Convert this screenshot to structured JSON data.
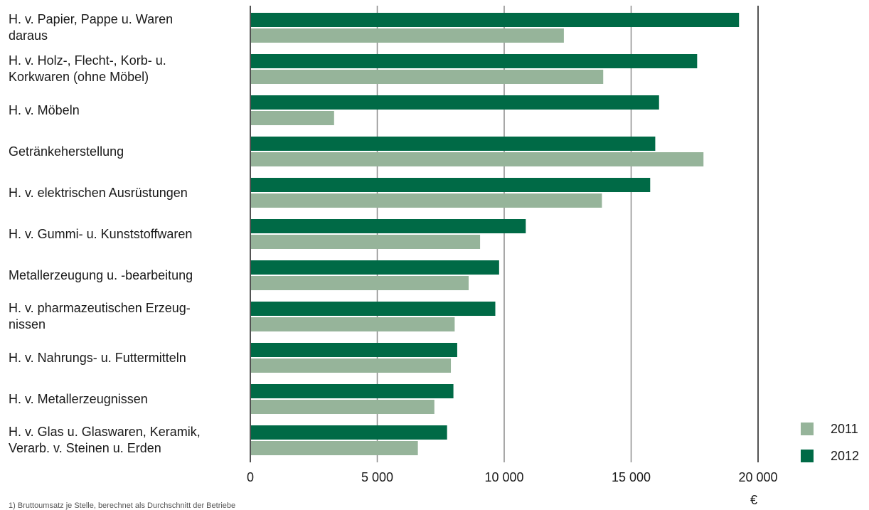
{
  "colors": {
    "2011": "#96b49a",
    "2012": "#006a46",
    "grid": "#8c8c8c",
    "axis": "#1a1a1a"
  },
  "chart_data": {
    "type": "bar",
    "orientation": "horizontal",
    "categories": [
      "H. v. Papier, Pappe u. Waren daraus",
      "H. v. Holz-, Flecht-, Korb- u. Korkwaren (ohne Möbel)",
      "H. v. Möbeln",
      "Getränkeherstellung",
      "H. v. elektrischen Ausrüstungen",
      "H. v. Gummi- u. Kunststoffwaren",
      "Metallerzeugung u. -bearbeitung",
      "H. v. pharmazeutischen Erzeug-nissen",
      "H. v. Nahrungs- u. Futtermitteln",
      "H. v. Metallerzeugnissen",
      "H. v. Glas u. Glaswaren, Keramik, Verarb. v. Steinen u. Erden"
    ],
    "category_lines": [
      [
        "H. v. Papier, Pappe u. Waren",
        "daraus"
      ],
      [
        "H. v. Holz-, Flecht-, Korb- u.",
        "Korkwaren (ohne Möbel)"
      ],
      [
        "H. v. Möbeln"
      ],
      [
        "Getränkeherstellung"
      ],
      [
        "H. v. elektrischen Ausrüstungen"
      ],
      [
        "H. v. Gummi- u. Kunststoffwaren"
      ],
      [
        "Metallerzeugung u. -bearbeitung"
      ],
      [
        "H. v. pharmazeutischen Erzeug-",
        "nissen"
      ],
      [
        "H. v. Nahrungs- u. Futtermitteln"
      ],
      [
        "H. v. Metallerzeugnissen"
      ],
      [
        "H. v. Glas u. Glaswaren, Keramik,",
        "Verarb. v. Steinen u. Erden"
      ]
    ],
    "series": [
      {
        "name": "2012",
        "values": [
          19250,
          17600,
          16100,
          15950,
          15750,
          10850,
          9800,
          9650,
          8150,
          8000,
          7750
        ]
      },
      {
        "name": "2011",
        "values": [
          12350,
          13900,
          3300,
          17850,
          13850,
          9050,
          8600,
          8050,
          7900,
          7250,
          6600
        ]
      }
    ],
    "xlim": [
      0,
      20000
    ],
    "xticks": [
      0,
      5000,
      10000,
      15000,
      20000
    ],
    "xtick_labels": [
      "0",
      "5 000",
      "10 000",
      "15 000",
      "20 000"
    ],
    "xlabel": "€",
    "grid": true,
    "legend": {
      "placement": "bottom-right",
      "entries": [
        "2011",
        "2012"
      ]
    },
    "footnote": "1) Bruttoumsatz je Stelle, berechnet als Durchschnitt der Betriebe"
  }
}
